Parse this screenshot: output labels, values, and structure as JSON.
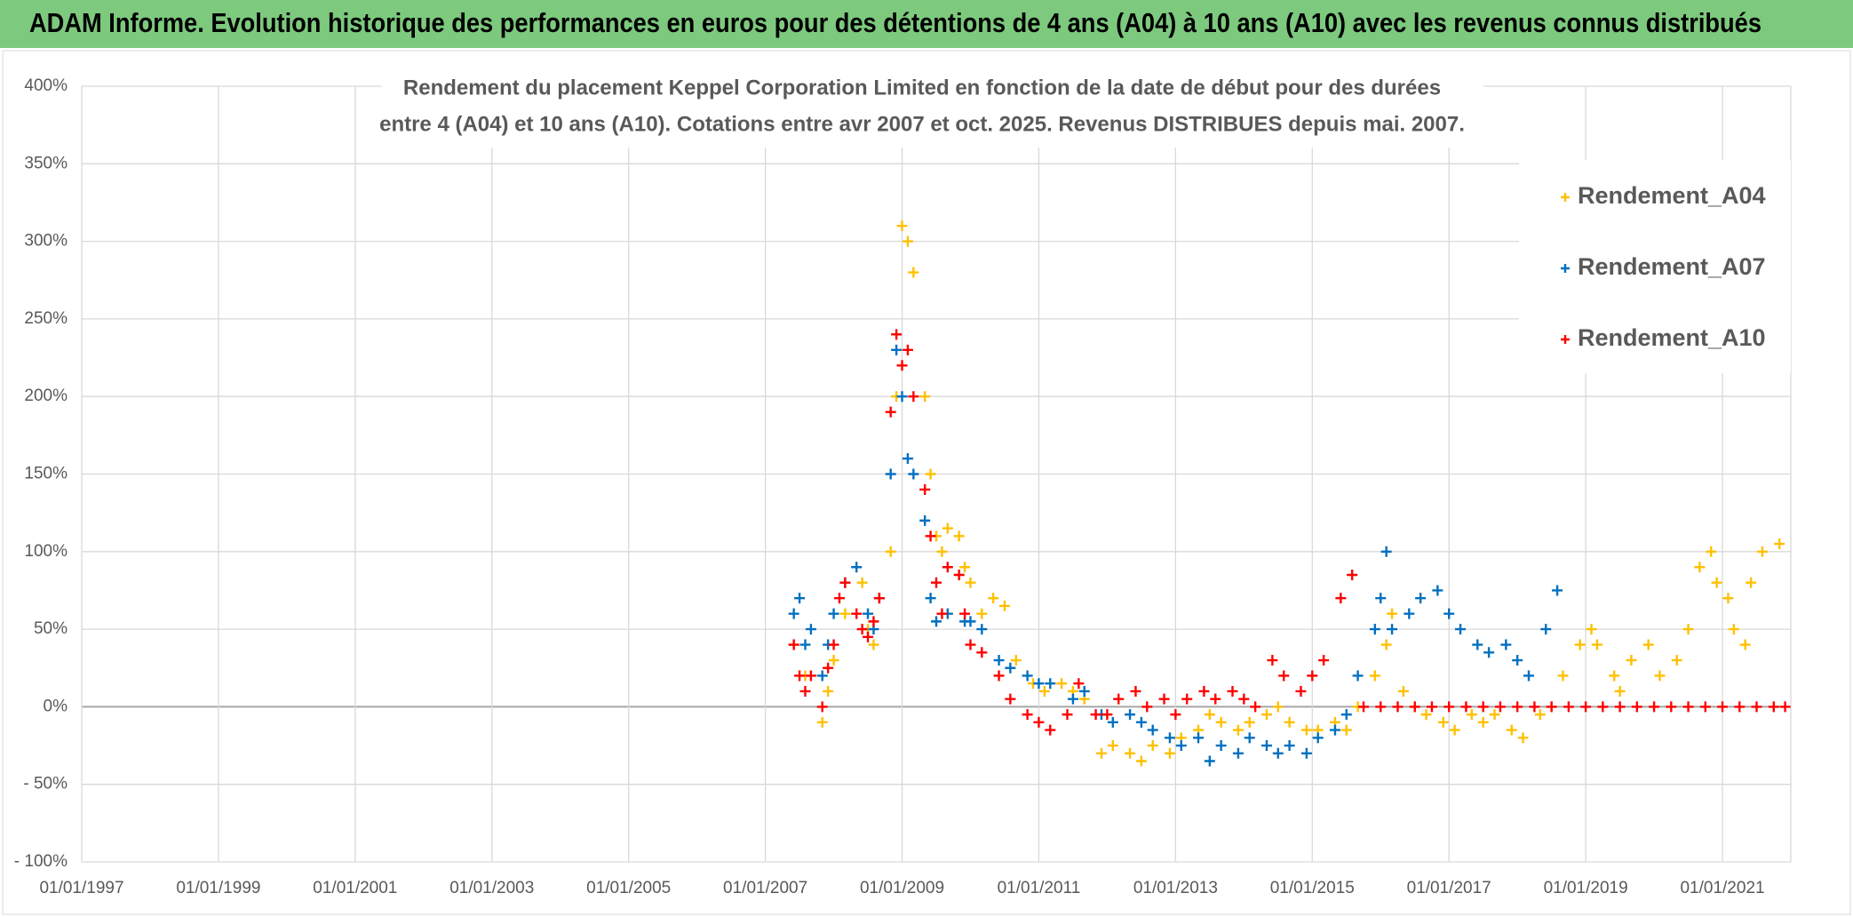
{
  "header": {
    "title": "ADAM Informe. Evolution historique des performances en euros pour des détentions de 4 ans (A04) à 10 ans (A10) avec les revenus connus distribués"
  },
  "chart_data": {
    "type": "scatter",
    "title": [
      "Rendement du placement Keppel Corporation Limited en fonction de la date de début pour des durées",
      "entre 4 (A04) et 10 ans (A10). Cotations entre avr 2007 et oct. 2025. Revenus DISTRIBUES depuis mai. 2007."
    ],
    "xlim": [
      "01/01/1997",
      "01/01/2022"
    ],
    "xticks": [
      "01/01/1997",
      "01/01/1999",
      "01/01/2001",
      "01/01/2003",
      "01/01/2005",
      "01/01/2007",
      "01/01/2009",
      "01/01/2011",
      "01/01/2013",
      "01/01/2015",
      "01/01/2017",
      "01/01/2019",
      "01/01/2021"
    ],
    "ylim": [
      -100,
      400
    ],
    "yticks": [
      {
        "value": 400,
        "label": "400%"
      },
      {
        "value": 350,
        "label": "350%"
      },
      {
        "value": 300,
        "label": "300%"
      },
      {
        "value": 250,
        "label": "250%"
      },
      {
        "value": 200,
        "label": "200%"
      },
      {
        "value": 150,
        "label": "150%"
      },
      {
        "value": 100,
        "label": "100%"
      },
      {
        "value": 50,
        "label": "50%"
      },
      {
        "value": 0,
        "label": "0%"
      },
      {
        "value": -50,
        "label": "- 50%"
      },
      {
        "value": -100,
        "label": "- 100%"
      }
    ],
    "grid": true,
    "legend": "right",
    "series": [
      {
        "name": "Rendement_A04",
        "color": "#FFC000",
        "x": [
          "01/06/2007",
          "01/08/2007",
          "01/11/2007",
          "01/12/2007",
          "01/01/2008",
          "01/03/2008",
          "01/06/2008",
          "01/07/2008",
          "01/08/2008",
          "01/09/2008",
          "01/11/2008",
          "01/12/2008",
          "01/01/2009",
          "01/02/2009",
          "01/03/2009",
          "01/05/2009",
          "01/06/2009",
          "01/07/2009",
          "01/08/2009",
          "01/09/2009",
          "01/11/2009",
          "01/12/2009",
          "01/01/2010",
          "01/03/2010",
          "01/05/2010",
          "01/07/2010",
          "01/09/2010",
          "01/12/2010",
          "01/02/2011",
          "01/05/2011",
          "01/07/2011",
          "01/09/2011",
          "01/12/2011",
          "01/02/2012",
          "01/05/2012",
          "01/07/2012",
          "01/09/2012",
          "01/12/2012",
          "01/02/2013",
          "01/05/2013",
          "01/07/2013",
          "01/09/2013",
          "01/12/2013",
          "01/02/2014",
          "01/05/2014",
          "01/07/2014",
          "01/09/2014",
          "01/12/2014",
          "01/02/2015",
          "01/05/2015",
          "01/07/2015",
          "01/09/2015",
          "01/12/2015",
          "01/02/2016",
          "01/03/2016",
          "01/05/2016",
          "01/07/2016",
          "01/09/2016",
          "01/12/2016",
          "01/02/2017",
          "01/05/2017",
          "01/07/2017",
          "01/09/2017",
          "01/12/2017",
          "01/02/2018",
          "01/05/2018",
          "01/07/2018",
          "01/09/2018",
          "01/12/2018",
          "01/02/2019",
          "01/03/2019",
          "01/06/2019",
          "01/07/2019",
          "01/09/2019",
          "01/12/2019",
          "01/02/2020",
          "01/05/2020",
          "01/07/2020",
          "01/09/2020",
          "01/11/2020",
          "01/12/2020",
          "01/02/2021",
          "01/03/2021",
          "01/05/2021",
          "01/06/2021",
          "01/08/2021",
          "01/11/2021"
        ],
        "values": [
          40,
          20,
          -10,
          10,
          30,
          60,
          80,
          50,
          40,
          70,
          100,
          200,
          310,
          300,
          280,
          200,
          150,
          110,
          100,
          115,
          110,
          90,
          80,
          60,
          70,
          65,
          30,
          15,
          10,
          15,
          10,
          5,
          -30,
          -25,
          -30,
          -35,
          -25,
          -30,
          -20,
          -15,
          -5,
          -10,
          -15,
          -10,
          -5,
          0,
          -10,
          -15,
          -15,
          -10,
          -15,
          0,
          20,
          40,
          60,
          10,
          0,
          -5,
          -10,
          -15,
          -5,
          -10,
          -5,
          -15,
          -20,
          -5,
          0,
          20,
          40,
          50,
          40,
          20,
          10,
          30,
          40,
          20,
          30,
          50,
          90,
          100,
          80,
          70,
          50,
          40,
          80,
          100,
          105
        ]
      },
      {
        "name": "Rendement_A07",
        "color": "#0070C0",
        "x": [
          "01/06/2007",
          "01/07/2007",
          "01/08/2007",
          "01/09/2007",
          "01/11/2007",
          "01/12/2007",
          "01/01/2008",
          "01/03/2008",
          "01/05/2008",
          "01/07/2008",
          "01/08/2008",
          "01/09/2008",
          "01/11/2008",
          "01/12/2008",
          "01/01/2009",
          "01/02/2009",
          "01/03/2009",
          "01/05/2009",
          "01/06/2009",
          "01/07/2009",
          "01/09/2009",
          "01/12/2009",
          "01/01/2010",
          "01/03/2010",
          "01/06/2010",
          "01/08/2010",
          "01/11/2010",
          "01/01/2011",
          "01/03/2011",
          "01/07/2011",
          "01/09/2011",
          "01/12/2011",
          "01/02/2012",
          "01/05/2012",
          "01/07/2012",
          "01/09/2012",
          "01/12/2012",
          "01/02/2013",
          "01/05/2013",
          "01/07/2013",
          "01/09/2013",
          "01/12/2013",
          "01/02/2014",
          "01/05/2014",
          "01/07/2014",
          "01/09/2014",
          "01/12/2014",
          "01/02/2015",
          "01/05/2015",
          "01/07/2015",
          "01/09/2015",
          "01/12/2015",
          "01/01/2016",
          "01/02/2016",
          "01/03/2016",
          "01/06/2016",
          "01/08/2016",
          "01/11/2016",
          "01/01/2017",
          "01/03/2017",
          "01/06/2017",
          "01/08/2017",
          "01/11/2017",
          "01/01/2018",
          "01/03/2018",
          "01/06/2018",
          "01/08/2018"
        ],
        "values": [
          60,
          70,
          40,
          50,
          20,
          40,
          60,
          80,
          90,
          60,
          50,
          70,
          150,
          230,
          200,
          160,
          150,
          120,
          70,
          55,
          60,
          55,
          55,
          50,
          30,
          25,
          20,
          15,
          15,
          5,
          10,
          -5,
          -10,
          -5,
          -10,
          -15,
          -20,
          -25,
          -20,
          -35,
          -25,
          -30,
          -20,
          -25,
          -30,
          -25,
          -30,
          -20,
          -15,
          -5,
          20,
          50,
          70,
          100,
          50,
          60,
          70,
          75,
          60,
          50,
          40,
          35,
          40,
          30,
          20,
          50,
          75
        ]
      },
      {
        "name": "Rendement_A10",
        "color": "#FF0000",
        "x": [
          "01/06/2007",
          "01/07/2007",
          "01/08/2007",
          "01/09/2007",
          "01/11/2007",
          "01/12/2007",
          "01/01/2008",
          "01/02/2008",
          "01/03/2008",
          "01/05/2008",
          "01/06/2008",
          "01/07/2008",
          "01/08/2008",
          "01/09/2008",
          "01/11/2008",
          "01/12/2008",
          "01/01/2009",
          "01/02/2009",
          "01/03/2009",
          "01/05/2009",
          "01/06/2009",
          "01/07/2009",
          "01/08/2009",
          "01/09/2009",
          "01/11/2009",
          "01/12/2009",
          "01/01/2010",
          "01/03/2010",
          "01/06/2010",
          "01/08/2010",
          "01/11/2010",
          "01/01/2011",
          "01/03/2011",
          "01/06/2011",
          "01/08/2011",
          "01/11/2011",
          "01/01/2012",
          "01/03/2012",
          "01/06/2012",
          "01/08/2012",
          "01/11/2012",
          "01/01/2013",
          "01/03/2013",
          "01/06/2013",
          "01/08/2013",
          "01/11/2013",
          "01/01/2014",
          "01/03/2014",
          "01/06/2014",
          "01/08/2014",
          "01/11/2014",
          "01/01/2015",
          "01/03/2015",
          "01/06/2015",
          "01/08/2015",
          "01/10/2015",
          "01/01/2016",
          "01/04/2016",
          "01/07/2016",
          "01/10/2016",
          "01/01/2017",
          "01/04/2017",
          "01/07/2017",
          "01/10/2017",
          "01/01/2018",
          "01/04/2018",
          "01/07/2018",
          "01/10/2018",
          "01/01/2019",
          "01/04/2019",
          "01/07/2019",
          "01/10/2019",
          "01/01/2020",
          "01/04/2020",
          "01/07/2020",
          "01/10/2020",
          "01/01/2021",
          "01/04/2021",
          "01/07/2021",
          "01/10/2021",
          "01/12/2021"
        ],
        "values": [
          40,
          20,
          10,
          20,
          0,
          25,
          40,
          70,
          80,
          60,
          50,
          45,
          55,
          70,
          190,
          240,
          220,
          230,
          200,
          140,
          110,
          80,
          60,
          90,
          85,
          60,
          40,
          35,
          20,
          5,
          -5,
          -10,
          -15,
          -5,
          15,
          -5,
          -5,
          5,
          10,
          0,
          5,
          -5,
          5,
          10,
          5,
          10,
          5,
          0,
          30,
          20,
          10,
          20,
          30,
          70,
          85,
          0,
          0,
          0,
          0,
          0,
          0,
          0,
          0,
          0,
          0,
          0,
          0,
          0,
          0,
          0,
          0,
          0,
          0,
          0,
          0,
          0,
          0,
          0,
          0,
          0,
          0
        ]
      }
    ]
  }
}
